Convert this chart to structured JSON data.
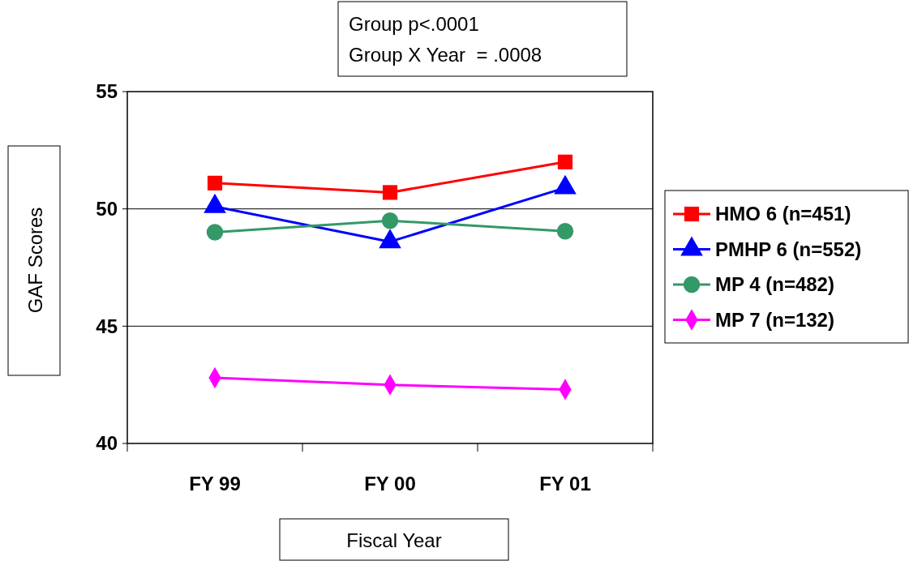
{
  "chart_data": {
    "type": "line",
    "categories": [
      "FY 99",
      "FY 00",
      "FY 01"
    ],
    "series": [
      {
        "name": "HMO 6 (n=451)",
        "color": "#ff0000",
        "marker": "square",
        "values": [
          51.1,
          50.7,
          52.0
        ]
      },
      {
        "name": "PMHP 6 (n=552)",
        "color": "#0000ff",
        "marker": "triangle",
        "values": [
          50.1,
          48.6,
          50.9
        ]
      },
      {
        "name": "MP 4 (n=482)",
        "color": "#339966",
        "marker": "circle",
        "values": [
          49.0,
          49.5,
          49.05
        ]
      },
      {
        "name": "MP 7 (n=132)",
        "color": "#ff00ff",
        "marker": "diamond",
        "values": [
          42.8,
          42.5,
          42.3
        ]
      }
    ],
    "ylim": [
      40,
      55
    ],
    "yticks": [
      40,
      45,
      50,
      55
    ],
    "grid": "y",
    "legend": "right",
    "xlabel": "Fiscal Year",
    "ylabel": "GAF Scores",
    "annotations": [
      "Group p<.0001",
      "Group X Year  = .0008"
    ]
  }
}
